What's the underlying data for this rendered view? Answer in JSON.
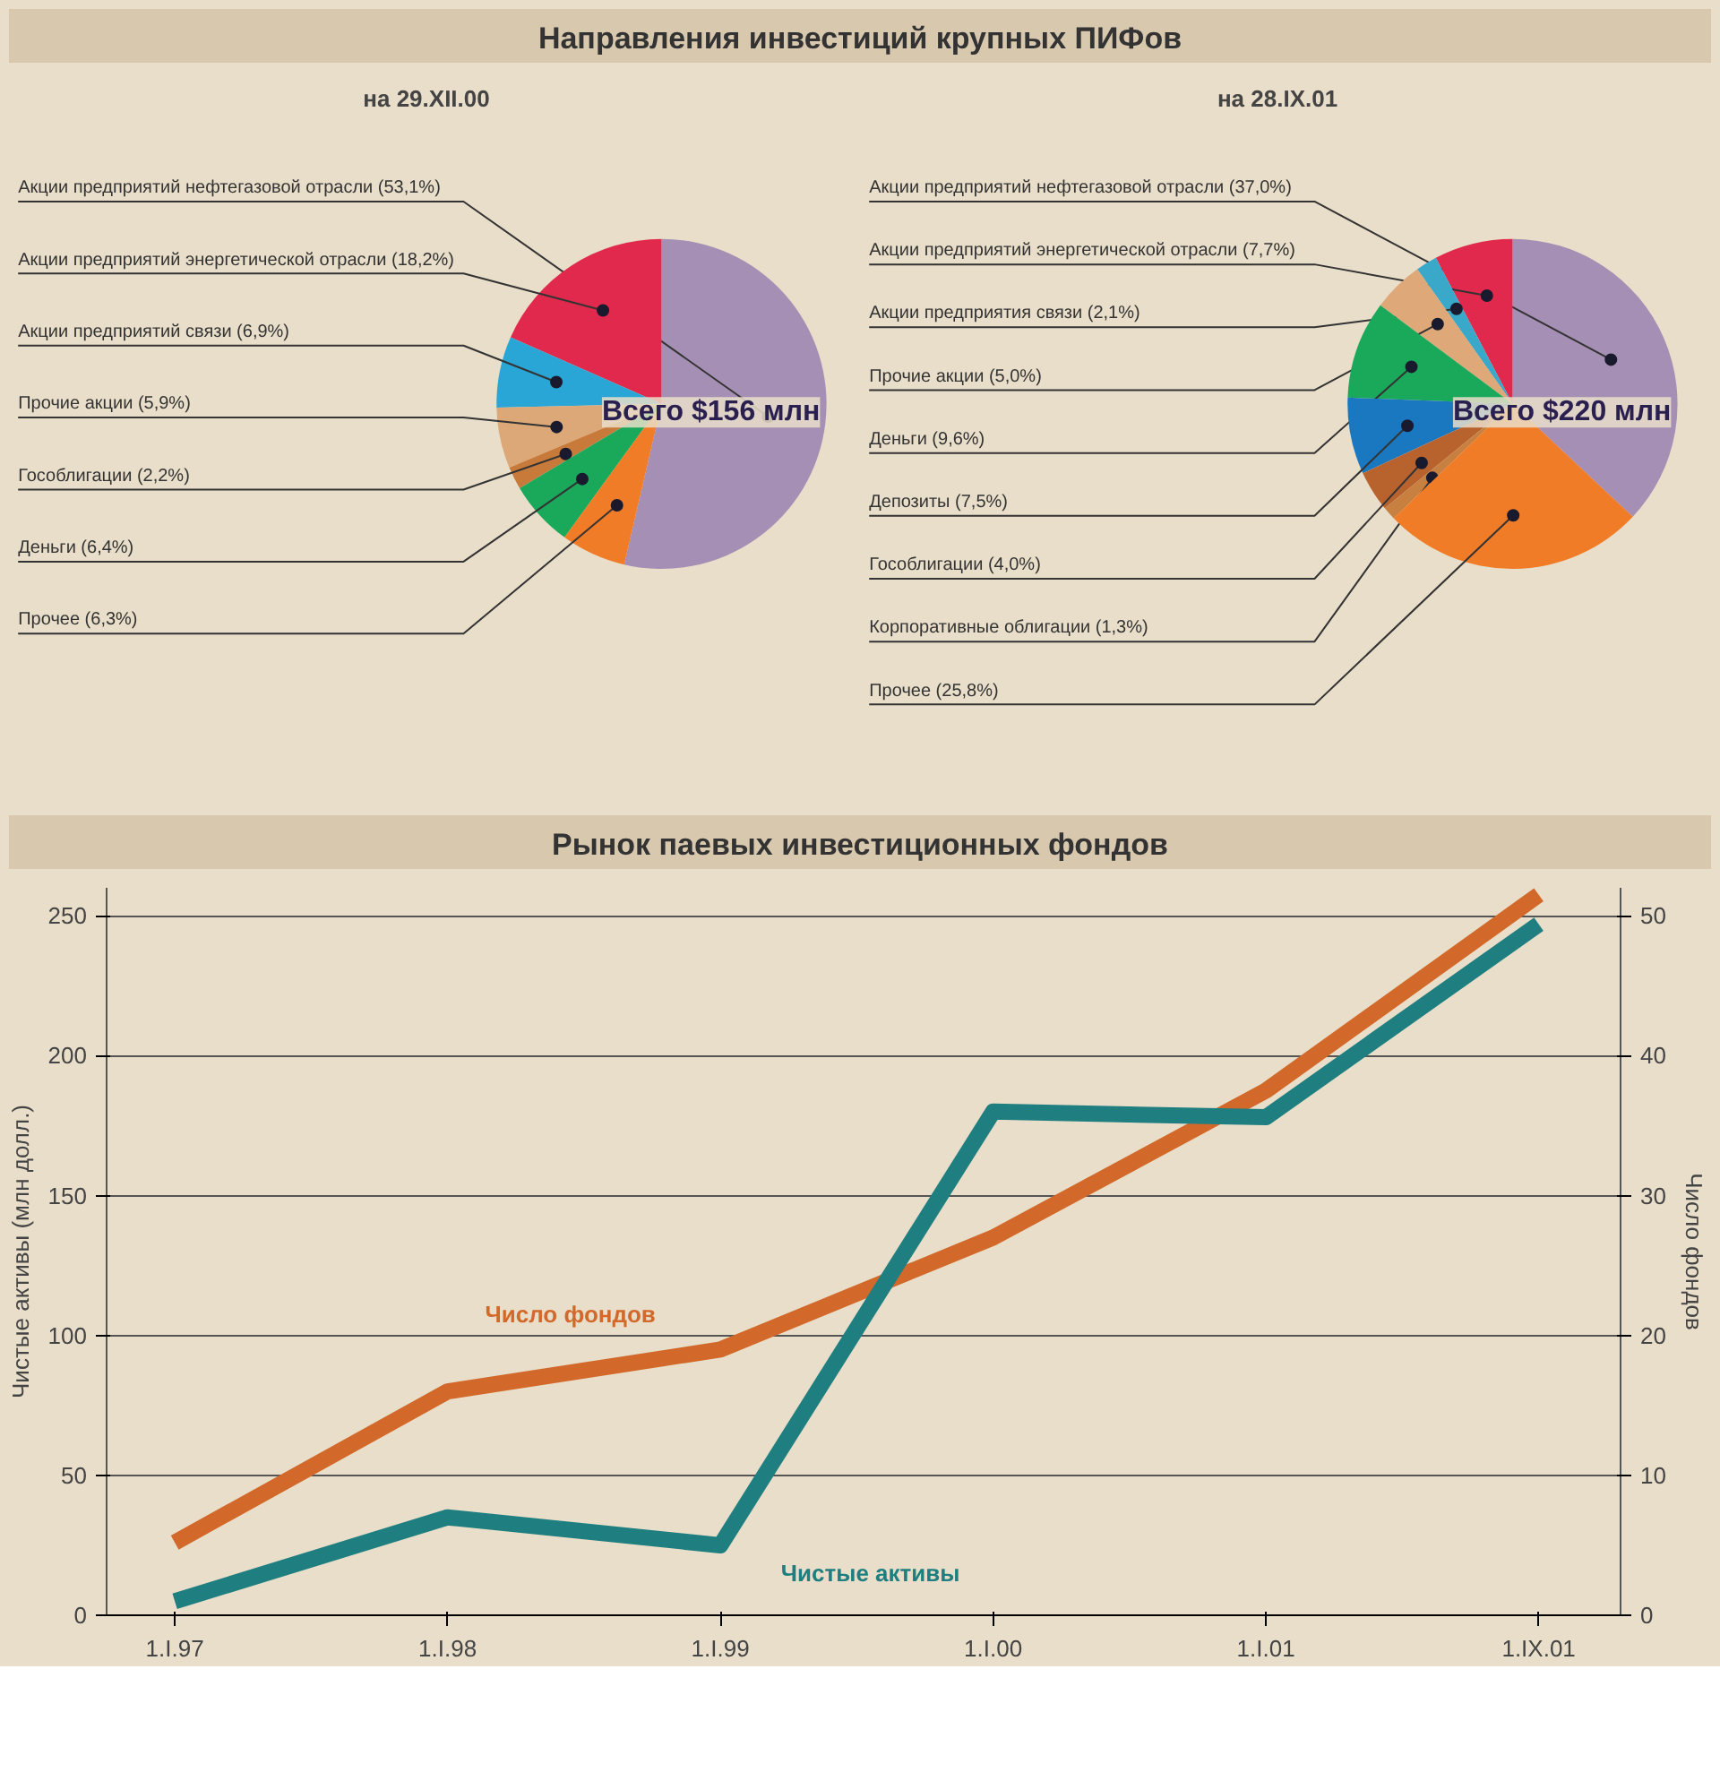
{
  "chart_data": [
    {
      "type": "pie",
      "title": "Направления инвестиций крупных ПИФов",
      "subtitle": "на 29.XII.00",
      "annotations": [
        "Всего $156 млн"
      ],
      "categories": [
        "Акции предприятий нефтегазовой отрасли (53,1%)",
        "Акции предприятий энергетической отрасли (18,2%)",
        "Акции предприятий связи (6,9%)",
        "Прочие акции (5,9%)",
        "Гособлигации (2,2%)",
        "Деньги (6,4%)",
        "Прочее (6,3%)"
      ],
      "values": [
        53.1,
        18.2,
        6.9,
        5.9,
        2.2,
        6.4,
        6.3
      ],
      "colors": [
        "#a58fb5",
        "#e0294d",
        "#29a6d6",
        "#dca878",
        "#c87a3a",
        "#1aa85a",
        "#f07c28"
      ]
    },
    {
      "type": "pie",
      "subtitle": "на 28.IX.01",
      "annotations": [
        "Всего $220 млн"
      ],
      "categories": [
        "Акции предприятий нефтегазовой отрасли (37,0%)",
        "Акции предприятий энергетической отрасли (7,7%)",
        "Акции предприятия связи (2,1%)",
        "Прочие акции (5,0%)",
        "Деньги (9,6%)",
        "Депозиты (7,5%)",
        "Гособлигации (4,0%)",
        "Корпоративные облигации (1,3%)",
        "Прочее (25,8%)"
      ],
      "values": [
        37.0,
        7.7,
        2.1,
        5.0,
        9.6,
        7.5,
        4.0,
        1.3,
        25.8
      ],
      "colors": [
        "#a58fb5",
        "#e0294d",
        "#3aa8c8",
        "#dfa878",
        "#1aa85a",
        "#1a78c0",
        "#b8622e",
        "#c88040",
        "#f07c28"
      ]
    },
    {
      "type": "line",
      "title": "Рынок паевых инвестиционных фондов",
      "ylabel": "Чистые активы (млн долл.)",
      "y2label": "Число фондов",
      "categories": [
        "1.I.97",
        "1.I.98",
        "1.I.99",
        "1.I.00",
        "1.I.01",
        "1.IX.01"
      ],
      "ylim": [
        0,
        260
      ],
      "yticks": [
        0,
        50,
        100,
        150,
        200,
        250
      ],
      "y2lim": [
        0,
        52
      ],
      "y2ticks": [
        0,
        10,
        20,
        30,
        40,
        50
      ],
      "grid": "y",
      "series": [
        {
          "name": "Число фондов",
          "color": "#d2692a",
          "axis": "y2",
          "values": [
            5.2,
            16,
            19,
            27,
            37.5,
            51.5
          ]
        },
        {
          "name": "Чистые активы",
          "color": "#1f7f80",
          "values": [
            5,
            35,
            25,
            180,
            178,
            247
          ]
        }
      ]
    }
  ]
}
